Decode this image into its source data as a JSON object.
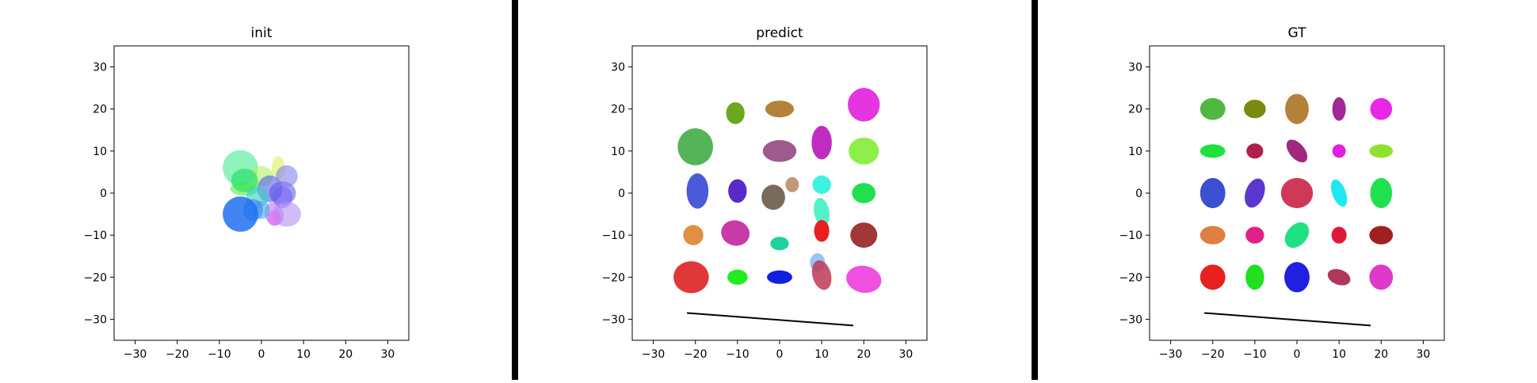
{
  "chart_data": [
    {
      "type": "scatter",
      "title": "init",
      "xlim": [
        -35,
        35
      ],
      "ylim": [
        -35,
        35
      ],
      "xticks": [
        -30,
        -20,
        -10,
        0,
        10,
        20,
        30
      ],
      "yticks": [
        -30,
        -20,
        -10,
        0,
        10,
        20,
        30
      ],
      "grid": false,
      "ellipses": [
        {
          "x": -5,
          "y": 6,
          "rx": 4.2,
          "ry": 4.2,
          "angle": 0,
          "color": "#7af0b0",
          "alpha": 0.85
        },
        {
          "x": 4,
          "y": 6,
          "rx": 1.6,
          "ry": 2.8,
          "angle": 0,
          "color": "#d8f060",
          "alpha": 0.6
        },
        {
          "x": 0,
          "y": 4,
          "rx": 2.8,
          "ry": 2.4,
          "angle": 0,
          "color": "#b0f060",
          "alpha": 0.6
        },
        {
          "x": -4,
          "y": 3,
          "rx": 3.2,
          "ry": 2.8,
          "angle": 0,
          "color": "#30e070",
          "alpha": 0.75
        },
        {
          "x": -4,
          "y": 1,
          "rx": 3.4,
          "ry": 1.6,
          "angle": 0,
          "color": "#40e840",
          "alpha": 0.55
        },
        {
          "x": 2,
          "y": 1,
          "rx": 3,
          "ry": 3.2,
          "angle": 0,
          "color": "#5060f0",
          "alpha": 0.6
        },
        {
          "x": 5,
          "y": 0,
          "rx": 3.2,
          "ry": 2.8,
          "angle": 0,
          "color": "#6050e8",
          "alpha": 0.55
        },
        {
          "x": 6,
          "y": 4,
          "rx": 2.6,
          "ry": 2.6,
          "angle": 0,
          "color": "#8080f0",
          "alpha": 0.6
        },
        {
          "x": -1,
          "y": -1,
          "rx": 2.6,
          "ry": 2.6,
          "angle": 0,
          "color": "#30d0c0",
          "alpha": 0.6
        },
        {
          "x": 5,
          "y": -1,
          "rx": 2.4,
          "ry": 2.6,
          "angle": 0,
          "color": "#7060f0",
          "alpha": 0.55
        },
        {
          "x": 3,
          "y": -5,
          "rx": 2.2,
          "ry": 2.8,
          "angle": 20,
          "color": "#c070f0",
          "alpha": 0.6
        },
        {
          "x": 6,
          "y": -5,
          "rx": 3.4,
          "ry": 3,
          "angle": 0,
          "color": "#b090f0",
          "alpha": 0.6
        },
        {
          "x": 3,
          "y": -6,
          "rx": 1.6,
          "ry": 1.8,
          "angle": 0,
          "color": "#e070f0",
          "alpha": 0.6
        },
        {
          "x": 0,
          "y": -4,
          "rx": 2,
          "ry": 2.2,
          "angle": 0,
          "color": "#40b0f0",
          "alpha": 0.6
        },
        {
          "x": -2,
          "y": -4,
          "rx": 2.4,
          "ry": 2.6,
          "angle": 0,
          "color": "#4080f0",
          "alpha": 0.6
        },
        {
          "x": -5,
          "y": -5,
          "rx": 4.2,
          "ry": 4.2,
          "angle": 0,
          "color": "#2070f0",
          "alpha": 0.85
        }
      ],
      "line": null
    },
    {
      "type": "scatter",
      "title": "predict",
      "xlim": [
        -35,
        35
      ],
      "ylim": [
        -35,
        35
      ],
      "xticks": [
        -30,
        -20,
        -10,
        0,
        10,
        20,
        30
      ],
      "yticks": [
        -30,
        -20,
        -10,
        0,
        10,
        20,
        30
      ],
      "grid": false,
      "ellipses": [
        {
          "x": -20,
          "y": 11,
          "rx": 4.2,
          "ry": 4.4,
          "angle": 0,
          "color": "#4caf50",
          "alpha": 0.95
        },
        {
          "x": -10.5,
          "y": 19,
          "rx": 2.2,
          "ry": 2.6,
          "angle": 0,
          "color": "#6aa820",
          "alpha": 1
        },
        {
          "x": 0,
          "y": 20,
          "rx": 3.4,
          "ry": 2,
          "angle": 0,
          "color": "#b5823a",
          "alpha": 1
        },
        {
          "x": 20,
          "y": 21,
          "rx": 3.8,
          "ry": 4,
          "angle": 0,
          "color": "#e535e0",
          "alpha": 1
        },
        {
          "x": 0,
          "y": 10,
          "rx": 4,
          "ry": 2.6,
          "angle": 0,
          "color": "#9e5a8c",
          "alpha": 1
        },
        {
          "x": 10,
          "y": 12,
          "rx": 2.4,
          "ry": 4,
          "angle": 0,
          "color": "#c02cc0",
          "alpha": 1
        },
        {
          "x": 20,
          "y": 10,
          "rx": 3.6,
          "ry": 3.2,
          "angle": 0,
          "color": "#8fef4a",
          "alpha": 1
        },
        {
          "x": -19.5,
          "y": 0.5,
          "rx": 2.6,
          "ry": 4.2,
          "angle": 0,
          "color": "#4a5ad8",
          "alpha": 1
        },
        {
          "x": -10,
          "y": 0.5,
          "rx": 2.2,
          "ry": 2.8,
          "angle": 0,
          "color": "#5a2ac8",
          "alpha": 1
        },
        {
          "x": -1.5,
          "y": -1,
          "rx": 2.8,
          "ry": 3,
          "angle": 0,
          "color": "#7a6a5a",
          "alpha": 1
        },
        {
          "x": 3,
          "y": 2,
          "rx": 1.6,
          "ry": 1.8,
          "angle": 0,
          "color": "#c09a78",
          "alpha": 1
        },
        {
          "x": 10,
          "y": 2,
          "rx": 2.2,
          "ry": 2.2,
          "angle": 0,
          "color": "#40f0e0",
          "alpha": 1
        },
        {
          "x": 10,
          "y": -4.5,
          "rx": 1.8,
          "ry": 3.4,
          "angle": 10,
          "color": "#40f0c0",
          "alpha": 0.9
        },
        {
          "x": 20,
          "y": 0,
          "rx": 2.8,
          "ry": 2.4,
          "angle": 0,
          "color": "#20e050",
          "alpha": 1
        },
        {
          "x": -20.5,
          "y": -10,
          "rx": 2.4,
          "ry": 2.4,
          "angle": 0,
          "color": "#e09040",
          "alpha": 1
        },
        {
          "x": -10.5,
          "y": -9.5,
          "rx": 3.4,
          "ry": 3,
          "angle": -15,
          "color": "#c83aa8",
          "alpha": 1
        },
        {
          "x": 0,
          "y": -12,
          "rx": 2.2,
          "ry": 1.6,
          "angle": 0,
          "color": "#20d0a0",
          "alpha": 1
        },
        {
          "x": 10,
          "y": -9,
          "rx": 1.8,
          "ry": 2.6,
          "angle": 0,
          "color": "#e82020",
          "alpha": 1
        },
        {
          "x": 20,
          "y": -10,
          "rx": 3.2,
          "ry": 3,
          "angle": 0,
          "color": "#a03838",
          "alpha": 1
        },
        {
          "x": -21,
          "y": -20,
          "rx": 4.2,
          "ry": 3.8,
          "angle": 0,
          "color": "#e03838",
          "alpha": 1
        },
        {
          "x": -10,
          "y": -20,
          "rx": 2.4,
          "ry": 1.8,
          "angle": 0,
          "color": "#20ee20",
          "alpha": 1
        },
        {
          "x": 0,
          "y": -20,
          "rx": 3,
          "ry": 1.6,
          "angle": 0,
          "color": "#1020e0",
          "alpha": 1
        },
        {
          "x": 9,
          "y": -16.5,
          "rx": 1.8,
          "ry": 2.2,
          "angle": 0,
          "color": "#80b8f0",
          "alpha": 0.8
        },
        {
          "x": 10,
          "y": -19.5,
          "rx": 2.2,
          "ry": 3.6,
          "angle": 15,
          "color": "#c03858",
          "alpha": 0.85
        },
        {
          "x": 20,
          "y": -20.5,
          "rx": 4.2,
          "ry": 3.2,
          "angle": -10,
          "color": "#f050e0",
          "alpha": 1
        }
      ],
      "line": {
        "x": [
          -22,
          17.5
        ],
        "y": [
          -28.5,
          -31.5
        ],
        "color": "#000000"
      }
    },
    {
      "type": "scatter",
      "title": "GT",
      "xlim": [
        -35,
        35
      ],
      "ylim": [
        -35,
        35
      ],
      "xticks": [
        -30,
        -20,
        -10,
        0,
        10,
        20,
        30
      ],
      "yticks": [
        -30,
        -20,
        -10,
        0,
        10,
        20,
        30
      ],
      "grid": false,
      "ellipses": [
        {
          "x": -20,
          "y": 20,
          "rx": 3,
          "ry": 2.6,
          "angle": 0,
          "color": "#50b840",
          "alpha": 1
        },
        {
          "x": -10,
          "y": 20,
          "rx": 2.6,
          "ry": 2.2,
          "angle": 0,
          "color": "#7a8a10",
          "alpha": 1
        },
        {
          "x": 0,
          "y": 20,
          "rx": 2.8,
          "ry": 3.6,
          "angle": 0,
          "color": "#b5803a",
          "alpha": 1
        },
        {
          "x": 10,
          "y": 20,
          "rx": 1.6,
          "ry": 2.8,
          "angle": 0,
          "color": "#a02898",
          "alpha": 1
        },
        {
          "x": 20,
          "y": 20,
          "rx": 2.6,
          "ry": 2.6,
          "angle": 0,
          "color": "#e828e8",
          "alpha": 1
        },
        {
          "x": -20,
          "y": 10,
          "rx": 3,
          "ry": 1.6,
          "angle": 0,
          "color": "#20e040",
          "alpha": 1
        },
        {
          "x": -10,
          "y": 10,
          "rx": 2,
          "ry": 1.8,
          "angle": 0,
          "color": "#b02048",
          "alpha": 1
        },
        {
          "x": 0,
          "y": 10,
          "rx": 1.8,
          "ry": 3.2,
          "angle": 40,
          "color": "#a02880",
          "alpha": 1
        },
        {
          "x": 10,
          "y": 10,
          "rx": 1.6,
          "ry": 1.6,
          "angle": 0,
          "color": "#e020e0",
          "alpha": 1
        },
        {
          "x": 20,
          "y": 10,
          "rx": 2.8,
          "ry": 1.6,
          "angle": 0,
          "color": "#90e030",
          "alpha": 1
        },
        {
          "x": -20,
          "y": 0,
          "rx": 3,
          "ry": 3.6,
          "angle": 0,
          "color": "#3a50d0",
          "alpha": 1
        },
        {
          "x": -10,
          "y": 0,
          "rx": 2.2,
          "ry": 3.6,
          "angle": -20,
          "color": "#5a38d0",
          "alpha": 1
        },
        {
          "x": 0,
          "y": 0,
          "rx": 3.8,
          "ry": 3.6,
          "angle": 0,
          "color": "#d03858",
          "alpha": 1
        },
        {
          "x": 10,
          "y": 0,
          "rx": 1.6,
          "ry": 3.4,
          "angle": 20,
          "color": "#20e8f0",
          "alpha": 1
        },
        {
          "x": 20,
          "y": 0,
          "rx": 2.6,
          "ry": 3.6,
          "angle": 0,
          "color": "#20e050",
          "alpha": 1
        },
        {
          "x": -20,
          "y": -10,
          "rx": 3,
          "ry": 2.2,
          "angle": 0,
          "color": "#e08040",
          "alpha": 1
        },
        {
          "x": -10,
          "y": -10,
          "rx": 2.2,
          "ry": 2,
          "angle": 0,
          "color": "#e02088",
          "alpha": 1
        },
        {
          "x": 0,
          "y": -10,
          "rx": 2.4,
          "ry": 3.4,
          "angle": -40,
          "color": "#20e080",
          "alpha": 1
        },
        {
          "x": 10,
          "y": -10,
          "rx": 1.8,
          "ry": 2,
          "angle": 0,
          "color": "#e01838",
          "alpha": 1
        },
        {
          "x": 20,
          "y": -10,
          "rx": 2.8,
          "ry": 2.2,
          "angle": 0,
          "color": "#a02020",
          "alpha": 1
        },
        {
          "x": -20,
          "y": -20,
          "rx": 3,
          "ry": 3,
          "angle": 0,
          "color": "#e82020",
          "alpha": 1
        },
        {
          "x": -10,
          "y": -20,
          "rx": 2.2,
          "ry": 3,
          "angle": 0,
          "color": "#20e020",
          "alpha": 1
        },
        {
          "x": 0,
          "y": -20,
          "rx": 3,
          "ry": 3.6,
          "angle": 0,
          "color": "#2020e0",
          "alpha": 1
        },
        {
          "x": 10,
          "y": -20,
          "rx": 2.8,
          "ry": 1.8,
          "angle": -20,
          "color": "#b03858",
          "alpha": 1
        },
        {
          "x": 20,
          "y": -20,
          "rx": 2.8,
          "ry": 3,
          "angle": 0,
          "color": "#e038c8",
          "alpha": 1
        }
      ],
      "line": {
        "x": [
          -22,
          17.5
        ],
        "y": [
          -28.5,
          -31.5
        ],
        "color": "#000000"
      }
    }
  ],
  "separator_color": "#000000"
}
